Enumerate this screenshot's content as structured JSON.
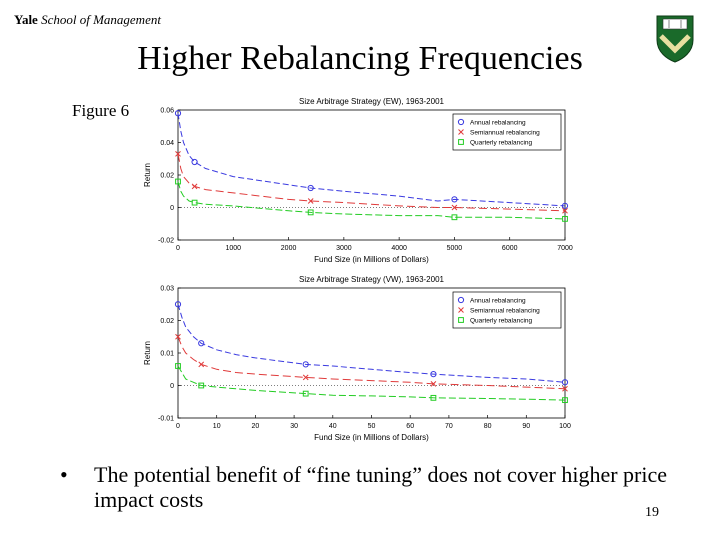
{
  "header": {
    "brand": "Yale",
    "subtitle": "School of Management"
  },
  "slide": {
    "title": "Higher Rebalancing Frequencies",
    "figure_label": "Figure 6",
    "bullet": "The potential benefit of “fine tuning” does not cover higher price impact costs",
    "page_number": "19"
  },
  "colors": {
    "annual": "#3a3ae0",
    "semiannual": "#e03a3a",
    "quarterly": "#22cc22"
  },
  "chart_data": [
    {
      "type": "line",
      "title": "Size Arbitrage Strategy (EW), 1963-2001",
      "xlabel": "Fund Size (in Millions of Dollars)",
      "ylabel": "Return",
      "xlim": [
        0,
        7000
      ],
      "ylim": [
        -0.02,
        0.06
      ],
      "xticks": [
        "0",
        "1000",
        "2000",
        "3000",
        "4000",
        "5000",
        "6000",
        "7000"
      ],
      "yticks": [
        "-0.02",
        "0",
        "0.02",
        "0.04",
        "0.06"
      ],
      "legend": "top-right",
      "series": [
        {
          "name": "Annual rebalancing",
          "marker": "circle",
          "x": [
            0,
            50,
            100,
            200,
            300,
            500,
            1000,
            2000,
            2400,
            3000,
            4000,
            4700,
            5000,
            6000,
            7000
          ],
          "y": [
            0.058,
            0.047,
            0.04,
            0.032,
            0.028,
            0.024,
            0.019,
            0.014,
            0.012,
            0.01,
            0.007,
            0.004,
            0.005,
            0.003,
            0.001
          ]
        },
        {
          "name": "Semiannual rebalancing",
          "marker": "x",
          "x": [
            0,
            50,
            100,
            200,
            300,
            500,
            1000,
            2000,
            2400,
            3000,
            4000,
            4700,
            5000,
            6000,
            7000
          ],
          "y": [
            0.033,
            0.024,
            0.019,
            0.015,
            0.013,
            0.011,
            0.009,
            0.005,
            0.004,
            0.003,
            0.001,
            0.0,
            0.0,
            -0.001,
            -0.002
          ]
        },
        {
          "name": "Quarterly rebalancing",
          "marker": "square",
          "x": [
            0,
            50,
            100,
            200,
            300,
            500,
            1000,
            2000,
            2400,
            3000,
            4000,
            4700,
            5000,
            6000,
            7000
          ],
          "y": [
            0.016,
            0.01,
            0.007,
            0.004,
            0.003,
            0.002,
            0.001,
            -0.002,
            -0.003,
            -0.004,
            -0.005,
            -0.005,
            -0.006,
            -0.006,
            -0.007
          ]
        }
      ]
    },
    {
      "type": "line",
      "title": "Size Arbitrage Strategy (VW), 1963-2001",
      "xlabel": "Fund Size (in Millions of Dollars)",
      "ylabel": "Return",
      "xlim": [
        0,
        100
      ],
      "ylim": [
        -0.01,
        0.03
      ],
      "xticks": [
        "0",
        "10",
        "20",
        "30",
        "40",
        "50",
        "60",
        "70",
        "80",
        "90",
        "100"
      ],
      "yticks": [
        "-0.01",
        "0",
        "0.01",
        "0.02",
        "0.03"
      ],
      "legend": "top-right",
      "series": [
        {
          "name": "Annual rebalancing",
          "marker": "circle",
          "x": [
            0,
            1,
            2,
            4,
            6,
            10,
            15,
            20,
            33,
            40,
            50,
            60,
            66,
            80,
            90,
            100
          ],
          "y": [
            0.025,
            0.021,
            0.018,
            0.015,
            0.013,
            0.011,
            0.0095,
            0.0085,
            0.0065,
            0.006,
            0.005,
            0.004,
            0.0035,
            0.0025,
            0.002,
            0.001
          ]
        },
        {
          "name": "Semiannual rebalancing",
          "marker": "x",
          "x": [
            0,
            1,
            2,
            4,
            6,
            10,
            15,
            20,
            33,
            40,
            50,
            60,
            66,
            80,
            90,
            100
          ],
          "y": [
            0.015,
            0.012,
            0.01,
            0.008,
            0.0065,
            0.005,
            0.004,
            0.0035,
            0.0025,
            0.002,
            0.0015,
            0.001,
            0.0005,
            0.0,
            -0.0005,
            -0.001
          ]
        },
        {
          "name": "Quarterly rebalancing",
          "marker": "square",
          "x": [
            0,
            1,
            2,
            4,
            6,
            10,
            15,
            20,
            33,
            40,
            50,
            60,
            66,
            80,
            90,
            100
          ],
          "y": [
            0.006,
            0.004,
            0.002,
            0.001,
            0.0,
            -0.0005,
            -0.001,
            -0.0015,
            -0.0025,
            -0.003,
            -0.0032,
            -0.0035,
            -0.0038,
            -0.004,
            -0.0042,
            -0.0045
          ]
        }
      ]
    }
  ]
}
